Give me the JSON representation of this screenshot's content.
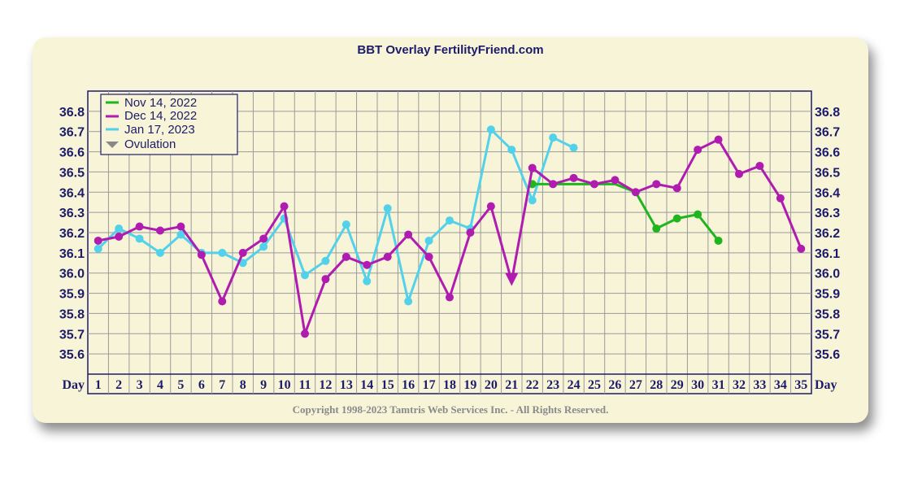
{
  "chart_data": {
    "type": "line",
    "title": "BBT Overlay FertilityFriend.com",
    "xlabel": "Day",
    "x": [
      1,
      2,
      3,
      4,
      5,
      6,
      7,
      8,
      9,
      10,
      11,
      12,
      13,
      14,
      15,
      16,
      17,
      18,
      19,
      20,
      21,
      22,
      23,
      24,
      25,
      26,
      27,
      28,
      29,
      30,
      31,
      32,
      33,
      34,
      35
    ],
    "y_ticks": [
      "36.8",
      "36.7",
      "36.6",
      "36.5",
      "36.4",
      "36.3",
      "36.2",
      "36.1",
      "36.0",
      "35.9",
      "35.8",
      "35.7",
      "35.6"
    ],
    "ylim": [
      35.5,
      36.9
    ],
    "grid": true,
    "legend_position": "top-left",
    "series": [
      {
        "name": "Nov 14, 2022",
        "color": "#1fb51f",
        "points": [
          [
            22,
            36.44
          ],
          [
            23,
            36.44
          ],
          [
            24,
            36.44
          ],
          [
            25,
            36.44
          ],
          [
            26,
            36.44
          ],
          [
            27,
            36.4
          ],
          [
            28,
            36.22
          ],
          [
            29,
            36.27
          ],
          [
            30,
            36.29
          ],
          [
            31,
            36.16
          ]
        ],
        "marker_days": [
          22,
          28,
          29,
          30,
          31
        ]
      },
      {
        "name": "Dec 14, 2022",
        "color": "#b01cb0",
        "points": [
          [
            1,
            36.16
          ],
          [
            2,
            36.18
          ],
          [
            3,
            36.23
          ],
          [
            4,
            36.21
          ],
          [
            5,
            36.23
          ],
          [
            6,
            36.09
          ],
          [
            7,
            35.86
          ],
          [
            8,
            36.1
          ],
          [
            9,
            36.17
          ],
          [
            10,
            36.33
          ],
          [
            11,
            35.7
          ],
          [
            12,
            35.97
          ],
          [
            13,
            36.08
          ],
          [
            14,
            36.04
          ],
          [
            15,
            36.08
          ],
          [
            16,
            36.19
          ],
          [
            17,
            36.08
          ],
          [
            18,
            35.88
          ],
          [
            19,
            36.2
          ],
          [
            20,
            36.33
          ],
          [
            21,
            35.96
          ],
          [
            22,
            36.52
          ],
          [
            23,
            36.44
          ],
          [
            24,
            36.47
          ],
          [
            25,
            36.44
          ],
          [
            26,
            36.46
          ],
          [
            27,
            36.4
          ],
          [
            28,
            36.44
          ],
          [
            29,
            36.42
          ],
          [
            30,
            36.61
          ],
          [
            31,
            36.66
          ],
          [
            32,
            36.49
          ],
          [
            33,
            36.53
          ],
          [
            34,
            36.37
          ],
          [
            35,
            36.12
          ]
        ],
        "marker_days": [
          1,
          2,
          3,
          4,
          5,
          6,
          7,
          8,
          9,
          10,
          11,
          12,
          13,
          14,
          15,
          16,
          17,
          18,
          19,
          20,
          22,
          23,
          24,
          25,
          26,
          27,
          28,
          29,
          30,
          31,
          32,
          33,
          34,
          35
        ]
      },
      {
        "name": "Jan 17, 2023",
        "color": "#52d2ea",
        "points": [
          [
            1,
            36.12
          ],
          [
            2,
            36.22
          ],
          [
            3,
            36.17
          ],
          [
            4,
            36.1
          ],
          [
            5,
            36.19
          ],
          [
            6,
            36.1
          ],
          [
            7,
            36.1
          ],
          [
            8,
            36.05
          ],
          [
            9,
            36.13
          ],
          [
            10,
            36.27
          ],
          [
            11,
            35.99
          ],
          [
            12,
            36.06
          ],
          [
            13,
            36.24
          ],
          [
            14,
            35.96
          ],
          [
            15,
            36.32
          ],
          [
            16,
            35.86
          ],
          [
            17,
            36.16
          ],
          [
            18,
            36.26
          ],
          [
            19,
            36.22
          ],
          [
            20,
            36.71
          ],
          [
            21,
            36.61
          ],
          [
            22,
            36.36
          ],
          [
            23,
            36.67
          ],
          [
            24,
            36.62
          ]
        ],
        "marker_days": [
          1,
          2,
          3,
          4,
          5,
          6,
          7,
          8,
          9,
          10,
          11,
          12,
          13,
          14,
          15,
          16,
          17,
          18,
          19,
          20,
          21,
          22,
          23,
          24
        ]
      }
    ],
    "ovulation": {
      "label": "Ovulation",
      "day": 21,
      "series": "Dec 14, 2022",
      "color": "#b01cb0",
      "legend_color": "#888888"
    },
    "copyright": "Copyright 1998-2023 Tamtris Web Services Inc. - All Rights Reserved."
  }
}
